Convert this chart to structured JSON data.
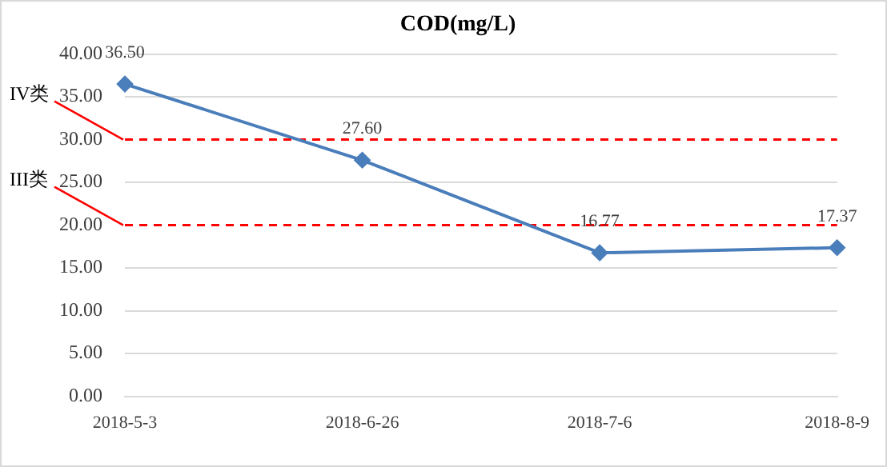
{
  "chart_data": {
    "type": "line",
    "title": "COD(mg/L)",
    "categories": [
      "2018-5-3",
      "2018-6-26",
      "2018-7-6",
      "2018-8-9"
    ],
    "series": [
      {
        "color": "#4a7ebb",
        "values": [
          36.5,
          27.6,
          16.77,
          17.37
        ],
        "value_labels": [
          "36.50",
          "27.60",
          "16.77",
          "17.37"
        ]
      }
    ],
    "ylim": [
      0,
      40
    ],
    "yticks": [
      {
        "value": 0,
        "label": "0.00"
      },
      {
        "value": 5,
        "label": "5.00"
      },
      {
        "value": 10,
        "label": "10.00"
      },
      {
        "value": 15,
        "label": "15.00"
      },
      {
        "value": 20,
        "label": "20.00"
      },
      {
        "value": 25,
        "label": "25.00"
      },
      {
        "value": 30,
        "label": "30.00"
      },
      {
        "value": 35,
        "label": "35.00"
      },
      {
        "value": 40,
        "label": "40.00"
      }
    ],
    "ref_lines": [
      {
        "axis": "y",
        "value": 30,
        "label": "IV类",
        "color": "#ff0000",
        "line_style": "dashed"
      },
      {
        "axis": "y",
        "value": 20,
        "label": "III类",
        "color": "#ff0000",
        "line_style": "dashed"
      }
    ],
    "grid": "y",
    "legend": false,
    "marker": "diamond",
    "line_style": "solid"
  }
}
